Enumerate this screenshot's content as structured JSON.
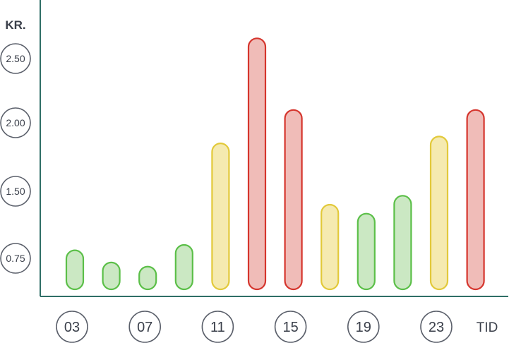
{
  "chart_data": {
    "type": "bar",
    "y_unit_label": "KR.",
    "x_unit_label": "TID",
    "y_ticks": [
      "0.75",
      "1.50",
      "2.00",
      "2.50"
    ],
    "x_tick_labels": [
      "03",
      "07",
      "11",
      "15",
      "19",
      "23"
    ],
    "x_tick_hours": [
      3,
      7,
      11,
      15,
      19,
      23
    ],
    "hours": [
      3,
      5,
      7,
      9,
      11,
      13,
      15,
      17,
      19,
      21,
      23,
      25
    ],
    "values": [
      0.84,
      0.65,
      0.55,
      0.9,
      1.85,
      2.7,
      2.1,
      1.35,
      1.25,
      1.45,
      1.9,
      2.1
    ],
    "levels": [
      "low",
      "low",
      "low",
      "low",
      "medium",
      "high",
      "high",
      "medium",
      "low",
      "low",
      "medium",
      "high"
    ],
    "level_colors": {
      "low": {
        "fill": "#cbe8c3",
        "stroke": "#5bbf48"
      },
      "medium": {
        "fill": "#f5eab0",
        "stroke": "#e2c93a"
      },
      "high": {
        "fill": "#f0bcb8",
        "stroke": "#d5352d"
      }
    },
    "axis_color": "#2f6e66",
    "tick_circle_color": "#5a5f6a",
    "grid": false
  }
}
